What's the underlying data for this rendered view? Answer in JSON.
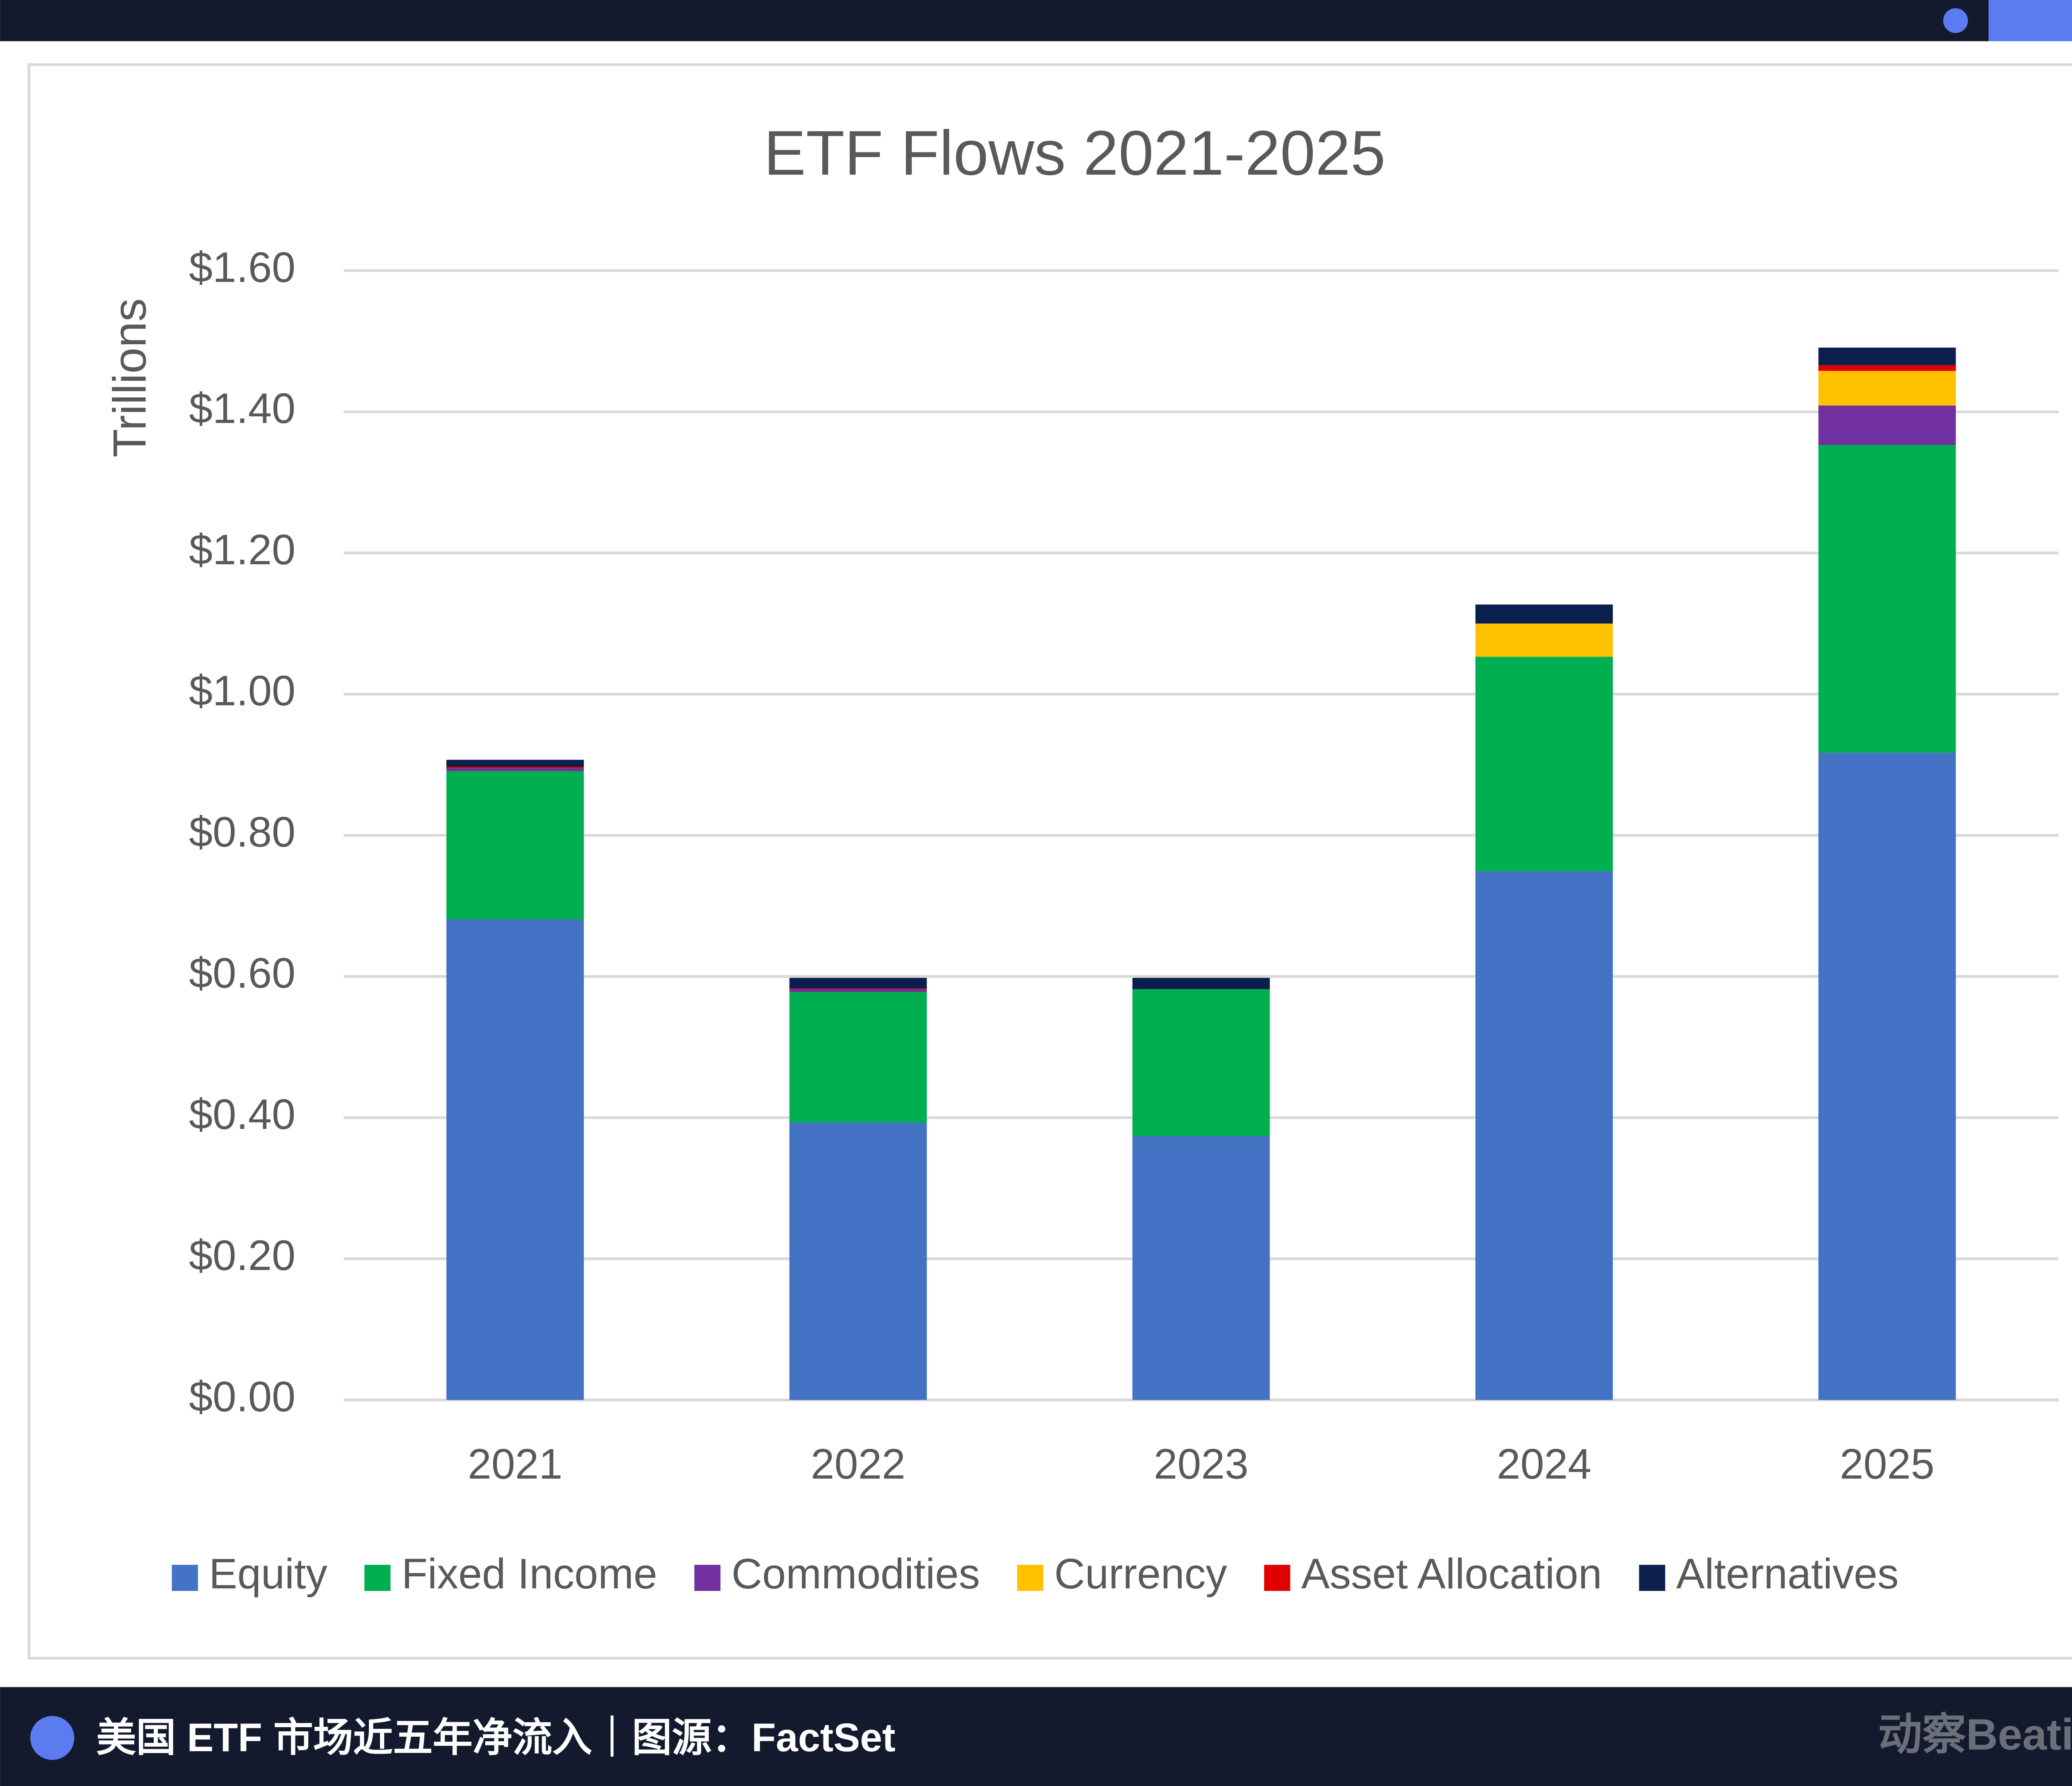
{
  "chart_data": {
    "type": "bar",
    "stacked": true,
    "title": "ETF Flows 2021-2025",
    "ylabel": "Trillions",
    "categories": [
      "2021",
      "2022",
      "2023",
      "2024",
      "2025"
    ],
    "series": [
      {
        "name": "Equity",
        "color": "#4472c4",
        "values": [
          0.681,
          0.393,
          0.374,
          0.749,
          0.917
        ]
      },
      {
        "name": "Fixed Income",
        "color": "#00b050",
        "values": [
          0.21,
          0.185,
          0.208,
          0.304,
          0.436
        ]
      },
      {
        "name": "Commodities",
        "color": "#7030a0",
        "values": [
          0.004,
          0.004,
          0.0,
          0.0,
          0.056
        ]
      },
      {
        "name": "Currency",
        "color": "#ffc000",
        "values": [
          0.0,
          0.0,
          0.0,
          0.047,
          0.049
        ]
      },
      {
        "name": "Asset Allocation",
        "color": "#e00000",
        "values": [
          0.002,
          0.001,
          0.0,
          0.0,
          0.008
        ]
      },
      {
        "name": "Alternatives",
        "color": "#0b1f4f",
        "values": [
          0.01,
          0.015,
          0.016,
          0.027,
          0.025
        ]
      }
    ],
    "ylim": [
      0,
      1.6
    ],
    "yticks": [
      {
        "value": 0,
        "label": "$0.00"
      },
      {
        "value": 0.2,
        "label": "$0.20"
      },
      {
        "value": 0.4,
        "label": "$0.40"
      },
      {
        "value": 0.6,
        "label": "$0.60"
      },
      {
        "value": 0.8,
        "label": "$0.80"
      },
      {
        "value": 1.0,
        "label": "$1.00"
      },
      {
        "value": 1.2,
        "label": "$1.20"
      },
      {
        "value": 1.4,
        "label": "$1.40"
      },
      {
        "value": 1.6,
        "label": "$1.60"
      }
    ],
    "grid": true,
    "legend": "bottom"
  },
  "caption": "美国 ETF 市场近五年净流入｜图源：FactSet",
  "brand": "动察Beating"
}
